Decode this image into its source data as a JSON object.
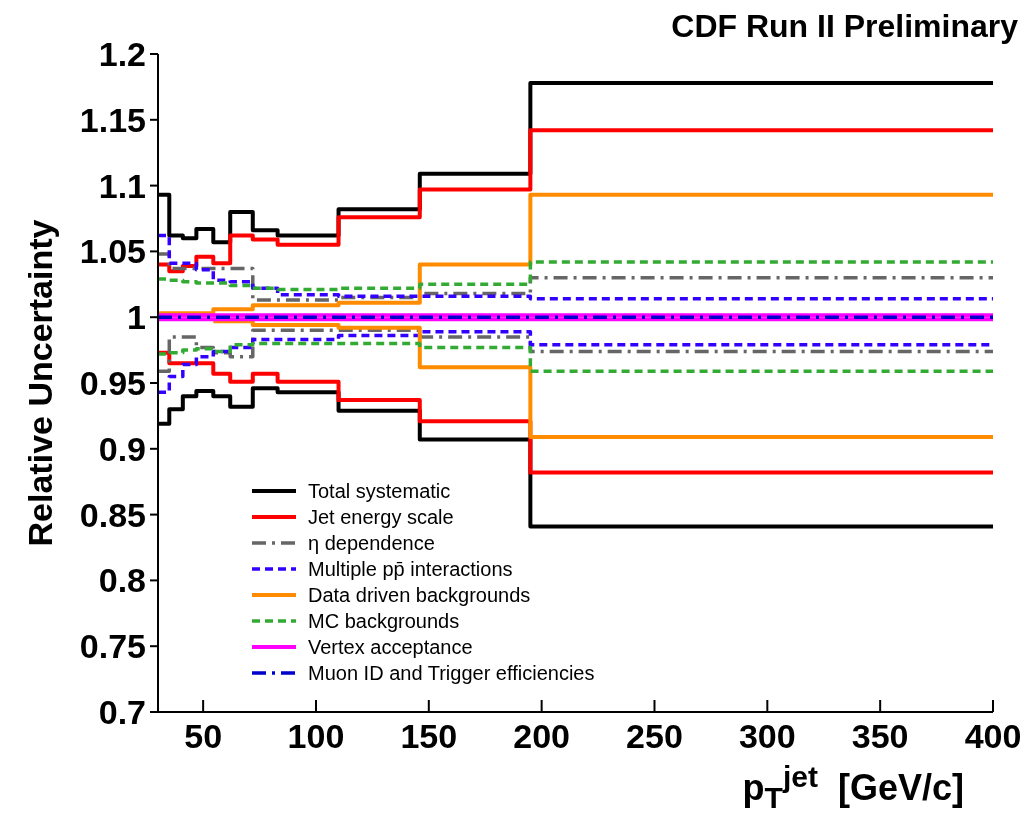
{
  "chart_data": {
    "type": "step",
    "title": "CDF Run II Preliminary",
    "xlabel": "p$_{T}$$^{jet}$  [GeV/c]",
    "ylabel": "Relative Uncertainty",
    "x": [
      30,
      35,
      41,
      47,
      54.5,
      62,
      72,
      83,
      110,
      146,
      195,
      400
    ],
    "xlim": [
      30,
      400
    ],
    "xticks": [
      50,
      100,
      150,
      200,
      250,
      300,
      350,
      400
    ],
    "ylim": [
      0.7,
      1.2
    ],
    "yticks": [
      0.7,
      0.75,
      0.8,
      0.85,
      0.9,
      0.95,
      1,
      1.05,
      1.1,
      1.15,
      1.2
    ],
    "grid": false,
    "legend": "bottom left",
    "marker": "none",
    "series": [
      {
        "name": "Total systematic",
        "color": "#000000",
        "line_style": "solid",
        "values": [
          1.093,
          1.062,
          1.06,
          1.067,
          1.057,
          1.08,
          1.066,
          1.062,
          1.082,
          1.109,
          1.178,
          1.178
        ]
      },
      {
        "color": "#000000",
        "line_style": "solid",
        "values": [
          0.919,
          0.93,
          0.94,
          0.944,
          0.94,
          0.932,
          0.946,
          0.943,
          0.929,
          0.907,
          0.841,
          0.841
        ]
      },
      {
        "name": "Jet energy scale",
        "color": "#ff0000",
        "line_style": "solid",
        "values": [
          1.04,
          1.035,
          1.039,
          1.046,
          1.041,
          1.062,
          1.059,
          1.055,
          1.076,
          1.097,
          1.142,
          1.142
        ]
      },
      {
        "color": "#ff0000",
        "line_style": "solid",
        "values": [
          0.973,
          0.965,
          0.965,
          0.965,
          0.957,
          0.951,
          0.957,
          0.951,
          0.937,
          0.921,
          0.882,
          0.882
        ]
      },
      {
        "name": "η dependence",
        "color": "#666666",
        "line_style": "dashed",
        "values": [
          1.048,
          1.037,
          1.037,
          1.037,
          1.037,
          1.037,
          1.013,
          1.013,
          1.015,
          1.018,
          1.03,
          1.03
        ]
      },
      {
        "color": "#666666",
        "line_style": "dashed",
        "values": [
          0.959,
          0.985,
          0.985,
          0.977,
          0.973,
          0.97,
          0.99,
          0.99,
          0.99,
          0.985,
          0.974,
          0.974
        ]
      },
      {
        "name": "Multiple pp̄ interactions",
        "color": "#3300ff",
        "line_style": "dotted",
        "values": [
          1.062,
          1.041,
          1.041,
          1.036,
          1.028,
          1.027,
          1.022,
          1.017,
          1.016,
          1.016,
          1.014,
          1.014
        ]
      },
      {
        "color": "#3300ff",
        "line_style": "dotted",
        "values": [
          0.943,
          0.955,
          0.964,
          0.97,
          0.974,
          0.977,
          0.983,
          0.983,
          0.986,
          0.989,
          0.979,
          0.979
        ]
      },
      {
        "name": "Data driven backgrounds",
        "color": "#ff8c00",
        "line_style": "solid",
        "values": [
          1.003,
          1.003,
          1.003,
          1.003,
          1.006,
          1.006,
          1.009,
          1.009,
          1.011,
          1.04,
          1.093,
          1.093
        ]
      },
      {
        "color": "#ff8c00",
        "line_style": "solid",
        "values": [
          null,
          null,
          null,
          null,
          0.997,
          0.997,
          0.994,
          0.994,
          0.992,
          0.962,
          0.909,
          0.909
        ]
      },
      {
        "name": "MC backgrounds",
        "color": "#33aa33",
        "line_style": "dotted",
        "values": [
          1.029,
          1.028,
          1.027,
          1.026,
          1.026,
          1.024,
          1.022,
          1.021,
          1.022,
          1.025,
          1.042,
          1.042
        ]
      },
      {
        "color": "#33aa33",
        "line_style": "dotted",
        "values": [
          0.972,
          0.973,
          0.975,
          0.976,
          0.974,
          0.979,
          0.98,
          0.98,
          0.98,
          0.977,
          0.959,
          0.959
        ]
      },
      {
        "name": "Vertex acceptance",
        "color": "#ff00ff",
        "line_style": "solid",
        "values": [
          1.0015,
          1.0015,
          1.0015,
          1.0015,
          1.0015,
          1.0015,
          1.0015,
          1.0015,
          1.0015,
          1.0015,
          1.0015,
          1.0015
        ]
      },
      {
        "color": "#ff00ff",
        "line_style": "solid",
        "values": [
          0.9985,
          0.9985,
          0.9985,
          0.9985,
          0.9985,
          0.9985,
          0.9985,
          0.9985,
          0.9985,
          0.9985,
          0.9985,
          0.9985
        ]
      },
      {
        "name": "Muon ID and Trigger efficiencies",
        "color": "#0000cc",
        "line_style": "dashed",
        "values": [
          1,
          1,
          1,
          1,
          1,
          1,
          1,
          1,
          1,
          1,
          1,
          1
        ]
      }
    ]
  }
}
